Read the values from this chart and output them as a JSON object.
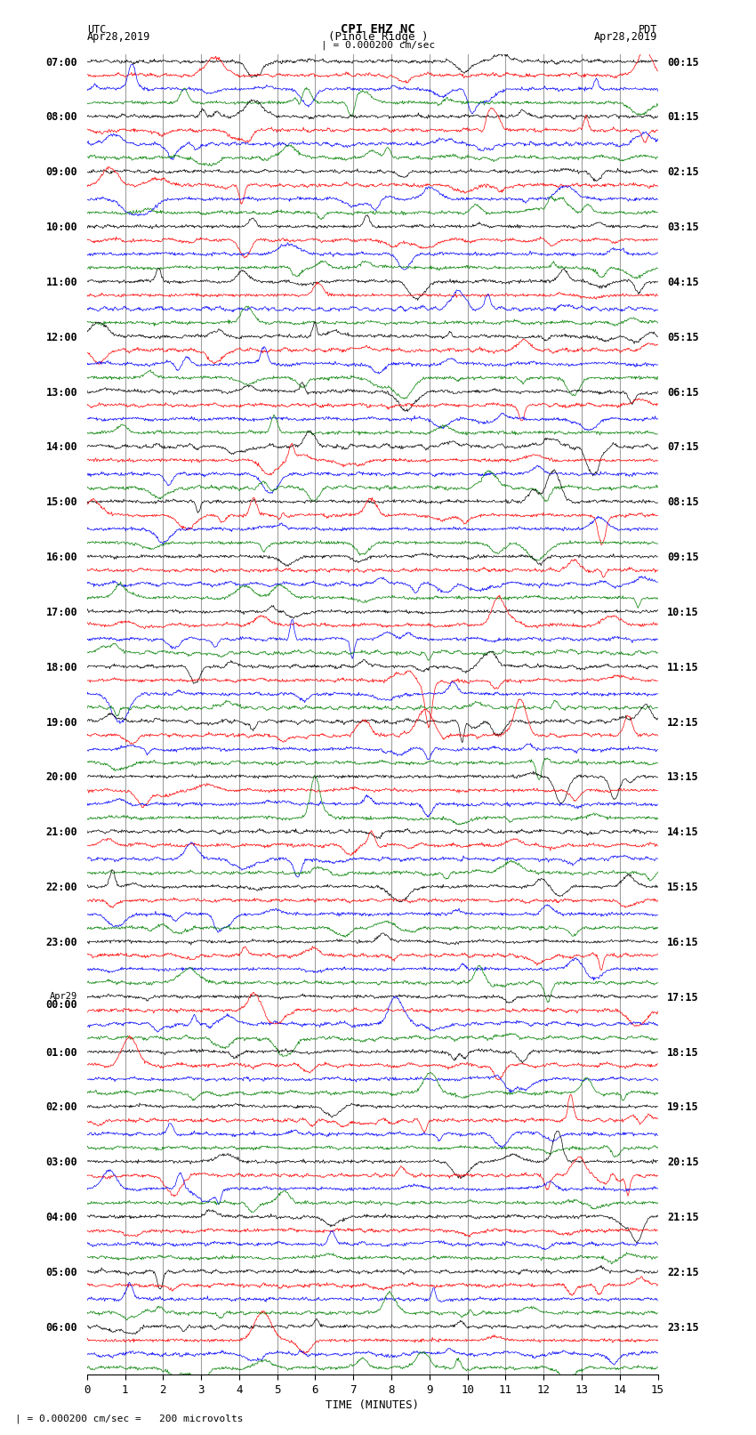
{
  "title_line1": "CPI EHZ NC",
  "title_line2": "(Pinole Ridge )",
  "scale_label": "| = 0.000200 cm/sec",
  "footer_label": "| = 0.000200 cm/sec =   200 microvolts",
  "left_header": "UTC",
  "left_date": "Apr28,2019",
  "right_header": "PDT",
  "right_date": "Apr28,2019",
  "xlabel": "TIME (MINUTES)",
  "xmin": 0,
  "xmax": 15,
  "xticks": [
    0,
    1,
    2,
    3,
    4,
    5,
    6,
    7,
    8,
    9,
    10,
    11,
    12,
    13,
    14,
    15
  ],
  "background_color": "#ffffff",
  "trace_colors": [
    "black",
    "red",
    "blue",
    "green"
  ],
  "n_hours": 24,
  "traces_per_hour": 4,
  "amplitude": 0.35,
  "noise_seed": 42,
  "vline_color": "#888888",
  "left_times": [
    "07:00",
    "08:00",
    "09:00",
    "10:00",
    "11:00",
    "12:00",
    "13:00",
    "14:00",
    "15:00",
    "16:00",
    "17:00",
    "18:00",
    "19:00",
    "20:00",
    "21:00",
    "22:00",
    "23:00",
    "Apr29\n00:00",
    "01:00",
    "02:00",
    "03:00",
    "04:00",
    "05:00",
    "06:00"
  ],
  "right_times": [
    "00:15",
    "01:15",
    "02:15",
    "03:15",
    "04:15",
    "05:15",
    "06:15",
    "07:15",
    "08:15",
    "09:15",
    "10:15",
    "11:15",
    "12:15",
    "13:15",
    "14:15",
    "15:15",
    "16:15",
    "17:15",
    "18:15",
    "19:15",
    "20:15",
    "21:15",
    "22:15",
    "23:15"
  ]
}
